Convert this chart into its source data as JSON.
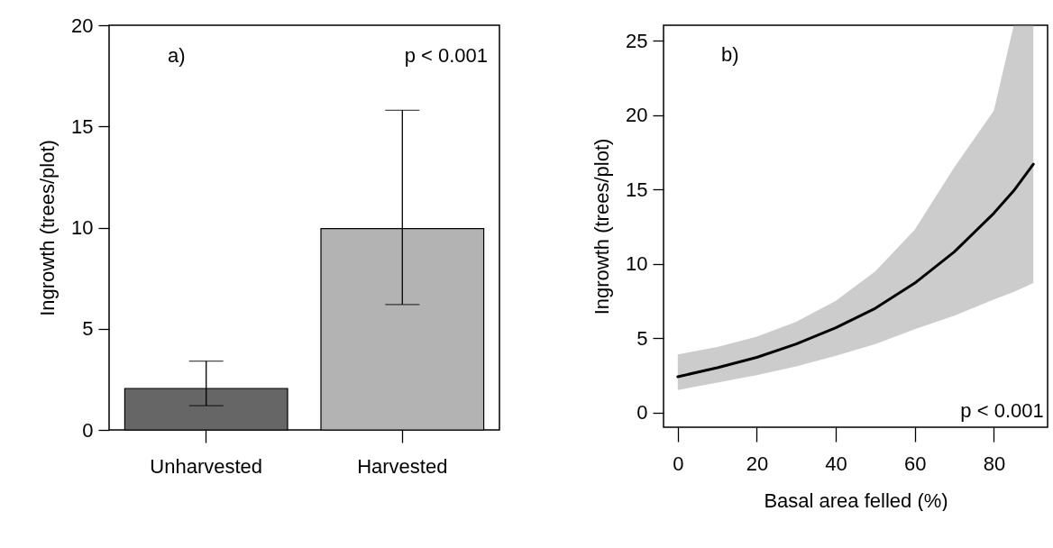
{
  "chart_data": [
    {
      "type": "bar",
      "categories": [
        "Unharvested",
        "Harvested"
      ],
      "values": [
        2.05,
        9.95
      ],
      "colors": [
        "#666666",
        "#b3b3b3"
      ],
      "errors": [
        [
          1.2,
          3.4
        ],
        [
          6.2,
          15.8
        ]
      ],
      "ylim": [
        0,
        20
      ],
      "yticks": [
        0,
        5,
        10,
        15,
        20
      ],
      "ylabel": "Ingrowth (trees/plot)",
      "annotations": [
        "a)",
        "p < 0.001"
      ]
    },
    {
      "type": "line",
      "x": [
        0,
        10,
        20,
        30,
        40,
        50,
        60,
        70,
        80,
        85,
        90
      ],
      "series": [
        {
          "color": "#000000",
          "values": [
            2.4,
            3.0,
            3.7,
            4.6,
            5.7,
            7.0,
            8.7,
            10.8,
            13.4,
            14.9,
            16.7
          ],
          "lower": [
            1.5,
            2.0,
            2.5,
            3.1,
            3.8,
            4.6,
            5.6,
            6.5,
            7.6,
            8.1,
            8.7
          ],
          "upper": [
            3.9,
            4.4,
            5.1,
            6.1,
            7.5,
            9.5,
            12.3,
            16.5,
            20.3,
            26,
            26
          ]
        }
      ],
      "xlim": [
        -3.6,
        93.6
      ],
      "xticks": [
        0,
        20,
        40,
        60,
        80
      ],
      "ylim": [
        -1.0,
        26.05
      ],
      "yticks": [
        0,
        5,
        10,
        15,
        20,
        25
      ],
      "xlabel": "Basal area felled (%)",
      "ylabel": "Ingrowth (trees/plot)",
      "annotations": [
        "b)",
        "p < 0.001"
      ]
    }
  ]
}
